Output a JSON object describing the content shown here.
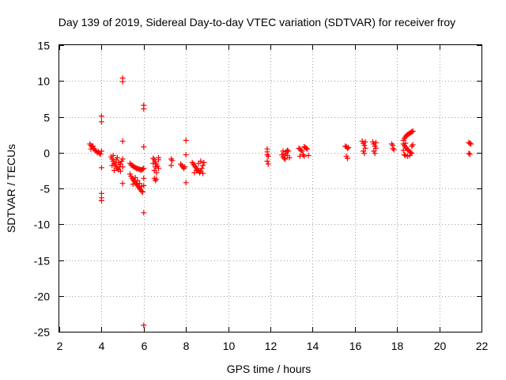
{
  "chart_data": {
    "type": "scatter",
    "title": "Day 139 of 2019, Sidereal Day-to-day VTEC variation (SDTVAR) for receiver froy",
    "xlabel": "GPS time / hours",
    "ylabel": "SDTVAR / TECUs",
    "xlim": [
      2,
      22
    ],
    "ylim": [
      -25,
      15
    ],
    "xticks": [
      2,
      4,
      6,
      8,
      10,
      12,
      14,
      16,
      18,
      20,
      22
    ],
    "yticks": [
      -25,
      -20,
      -15,
      -10,
      -5,
      0,
      5,
      10,
      15
    ],
    "grid": true,
    "marker": "plus",
    "color": "#ff0000",
    "series": [
      {
        "name": "SDTVAR",
        "points": [
          [
            3.45,
            1.2
          ],
          [
            3.5,
            1.0
          ],
          [
            3.55,
            0.8
          ],
          [
            3.6,
            0.6
          ],
          [
            3.65,
            0.5
          ],
          [
            3.7,
            0.3
          ],
          [
            3.75,
            0.2
          ],
          [
            3.8,
            0.0
          ],
          [
            3.85,
            0.1
          ],
          [
            3.9,
            -0.1
          ],
          [
            3.95,
            -0.2
          ],
          [
            4.0,
            0.2
          ],
          [
            3.5,
            0.5
          ],
          [
            3.6,
            0.9
          ],
          [
            4.0,
            5.1
          ],
          [
            4.0,
            4.3
          ],
          [
            4.0,
            -2.1
          ],
          [
            4.0,
            -5.7
          ],
          [
            4.0,
            -6.3
          ],
          [
            4.0,
            -6.7
          ],
          [
            4.45,
            -0.6
          ],
          [
            4.5,
            -0.9
          ],
          [
            4.55,
            -1.2
          ],
          [
            4.6,
            -1.5
          ],
          [
            4.65,
            -1.7
          ],
          [
            4.7,
            -2.0
          ],
          [
            4.75,
            -2.2
          ],
          [
            4.8,
            -2.4
          ],
          [
            4.85,
            -2.0
          ],
          [
            4.9,
            -1.6
          ],
          [
            4.95,
            -1.2
          ],
          [
            5.0,
            -0.9
          ],
          [
            4.5,
            -1.8
          ],
          [
            4.6,
            -2.5
          ],
          [
            4.7,
            -1.0
          ],
          [
            4.8,
            -1.4
          ],
          [
            4.9,
            -2.6
          ],
          [
            5.0,
            -2.0
          ],
          [
            4.55,
            -0.4
          ],
          [
            4.75,
            -0.7
          ],
          [
            5.0,
            10.4
          ],
          [
            5.0,
            9.9
          ],
          [
            5.0,
            1.6
          ],
          [
            5.0,
            -4.3
          ],
          [
            5.35,
            -1.5
          ],
          [
            5.4,
            -1.7
          ],
          [
            5.45,
            -1.8
          ],
          [
            5.5,
            -1.9
          ],
          [
            5.55,
            -2.0
          ],
          [
            5.6,
            -2.1
          ],
          [
            5.65,
            -2.2
          ],
          [
            5.7,
            -2.2
          ],
          [
            5.75,
            -2.3
          ],
          [
            5.8,
            -2.3
          ],
          [
            5.85,
            -2.4
          ],
          [
            5.9,
            -2.4
          ],
          [
            5.95,
            -2.3
          ],
          [
            6.0,
            -2.2
          ],
          [
            5.35,
            -3.0
          ],
          [
            5.4,
            -3.3
          ],
          [
            5.45,
            -3.6
          ],
          [
            5.5,
            -3.8
          ],
          [
            5.55,
            -4.0
          ],
          [
            5.6,
            -4.2
          ],
          [
            5.65,
            -4.4
          ],
          [
            5.7,
            -4.6
          ],
          [
            5.75,
            -4.8
          ],
          [
            5.8,
            -5.0
          ],
          [
            5.85,
            -5.2
          ],
          [
            5.9,
            -5.4
          ],
          [
            5.95,
            -5.5
          ],
          [
            6.0,
            -4.6
          ],
          [
            6.0,
            -3.6
          ],
          [
            5.5,
            -4.4
          ],
          [
            5.6,
            -3.5
          ],
          [
            5.7,
            -3.9
          ],
          [
            5.8,
            -4.3
          ],
          [
            5.9,
            -4.7
          ],
          [
            6.0,
            6.6
          ],
          [
            6.0,
            6.1
          ],
          [
            6.0,
            0.8
          ],
          [
            6.0,
            -8.4
          ],
          [
            6.0,
            -24.1
          ],
          [
            6.45,
            -0.8
          ],
          [
            6.5,
            -1.0
          ],
          [
            6.55,
            -1.3
          ],
          [
            6.6,
            -1.6
          ],
          [
            6.65,
            -1.9
          ],
          [
            6.7,
            -2.2
          ],
          [
            6.5,
            -2.5
          ],
          [
            6.6,
            -2.8
          ],
          [
            6.45,
            -1.5
          ],
          [
            6.55,
            -2.0
          ],
          [
            6.7,
            -1.0
          ],
          [
            6.5,
            -3.6
          ],
          [
            6.55,
            -3.9
          ],
          [
            6.6,
            -3.7
          ],
          [
            6.7,
            -0.7
          ],
          [
            7.3,
            -0.9
          ],
          [
            7.35,
            -1.1
          ],
          [
            7.3,
            -1.8
          ],
          [
            7.75,
            -1.6
          ],
          [
            7.8,
            -1.8
          ],
          [
            7.85,
            -2.0
          ],
          [
            7.9,
            -2.2
          ],
          [
            7.95,
            -2.0
          ],
          [
            8.0,
            1.7
          ],
          [
            8.0,
            -0.3
          ],
          [
            8.0,
            -4.2
          ],
          [
            8.3,
            -1.4
          ],
          [
            8.35,
            -1.6
          ],
          [
            8.4,
            -1.8
          ],
          [
            8.45,
            -2.0
          ],
          [
            8.5,
            -2.2
          ],
          [
            8.55,
            -2.4
          ],
          [
            8.6,
            -2.6
          ],
          [
            8.65,
            -2.8
          ],
          [
            8.7,
            -2.6
          ],
          [
            8.75,
            -2.2
          ],
          [
            8.8,
            -1.8
          ],
          [
            8.85,
            -1.4
          ],
          [
            8.4,
            -2.8
          ],
          [
            8.5,
            -2.5
          ],
          [
            8.6,
            -1.5
          ],
          [
            8.7,
            -1.2
          ],
          [
            8.8,
            -2.9
          ],
          [
            11.85,
            0.5
          ],
          [
            11.85,
            0.1
          ],
          [
            11.85,
            -0.3
          ],
          [
            11.9,
            -0.5
          ],
          [
            11.85,
            -1.2
          ],
          [
            11.9,
            -1.6
          ],
          [
            12.55,
            -0.3
          ],
          [
            12.6,
            -0.6
          ],
          [
            12.65,
            -0.8
          ],
          [
            12.7,
            -0.2
          ],
          [
            12.75,
            0.1
          ],
          [
            12.8,
            -0.4
          ],
          [
            12.85,
            0.2
          ],
          [
            12.9,
            -0.7
          ],
          [
            12.6,
            0.2
          ],
          [
            12.7,
            -0.9
          ],
          [
            12.8,
            0.3
          ],
          [
            13.35,
            0.6
          ],
          [
            13.4,
            0.5
          ],
          [
            13.45,
            0.3
          ],
          [
            13.5,
            0.2
          ],
          [
            13.55,
            -0.3
          ],
          [
            13.6,
            -0.5
          ],
          [
            13.65,
            0.7
          ],
          [
            13.7,
            0.6
          ],
          [
            13.75,
            0.5
          ],
          [
            13.8,
            -0.4
          ],
          [
            13.4,
            -0.5
          ],
          [
            13.6,
            0.8
          ],
          [
            15.55,
            0.9
          ],
          [
            15.6,
            0.8
          ],
          [
            15.65,
            0.6
          ],
          [
            15.7,
            0.7
          ],
          [
            15.6,
            -0.5
          ],
          [
            15.65,
            -0.8
          ],
          [
            16.35,
            1.6
          ],
          [
            16.4,
            1.3
          ],
          [
            16.45,
            1.0
          ],
          [
            16.5,
            0.6
          ],
          [
            16.4,
            0.2
          ],
          [
            16.45,
            -0.1
          ],
          [
            16.5,
            1.5
          ],
          [
            16.85,
            1.5
          ],
          [
            16.9,
            1.2
          ],
          [
            16.95,
            0.9
          ],
          [
            17.0,
            0.6
          ],
          [
            16.9,
            0.2
          ],
          [
            16.95,
            -0.1
          ],
          [
            17.0,
            1.4
          ],
          [
            17.75,
            1.2
          ],
          [
            17.8,
            1.0
          ],
          [
            17.8,
            0.6
          ],
          [
            17.85,
            0.4
          ],
          [
            18.3,
            1.7
          ],
          [
            18.35,
            2.0
          ],
          [
            18.4,
            2.2
          ],
          [
            18.45,
            2.4
          ],
          [
            18.5,
            2.5
          ],
          [
            18.55,
            2.6
          ],
          [
            18.6,
            2.7
          ],
          [
            18.65,
            2.8
          ],
          [
            18.7,
            2.9
          ],
          [
            18.75,
            3.0
          ],
          [
            18.3,
            1.2
          ],
          [
            18.35,
            1.0
          ],
          [
            18.4,
            0.8
          ],
          [
            18.45,
            0.6
          ],
          [
            18.5,
            0.4
          ],
          [
            18.55,
            0.3
          ],
          [
            18.6,
            0.1
          ],
          [
            18.65,
            0.0
          ],
          [
            18.7,
            -0.1
          ],
          [
            18.3,
            0.3
          ],
          [
            18.35,
            -0.3
          ],
          [
            18.4,
            -0.4
          ],
          [
            18.5,
            -0.5
          ],
          [
            18.6,
            -0.4
          ],
          [
            18.7,
            0.9
          ],
          [
            18.75,
            1.1
          ],
          [
            18.4,
            1.3
          ],
          [
            21.4,
            1.4
          ],
          [
            21.45,
            1.3
          ],
          [
            21.5,
            1.2
          ],
          [
            21.4,
            -0.1
          ],
          [
            21.45,
            -0.2
          ]
        ]
      }
    ]
  }
}
